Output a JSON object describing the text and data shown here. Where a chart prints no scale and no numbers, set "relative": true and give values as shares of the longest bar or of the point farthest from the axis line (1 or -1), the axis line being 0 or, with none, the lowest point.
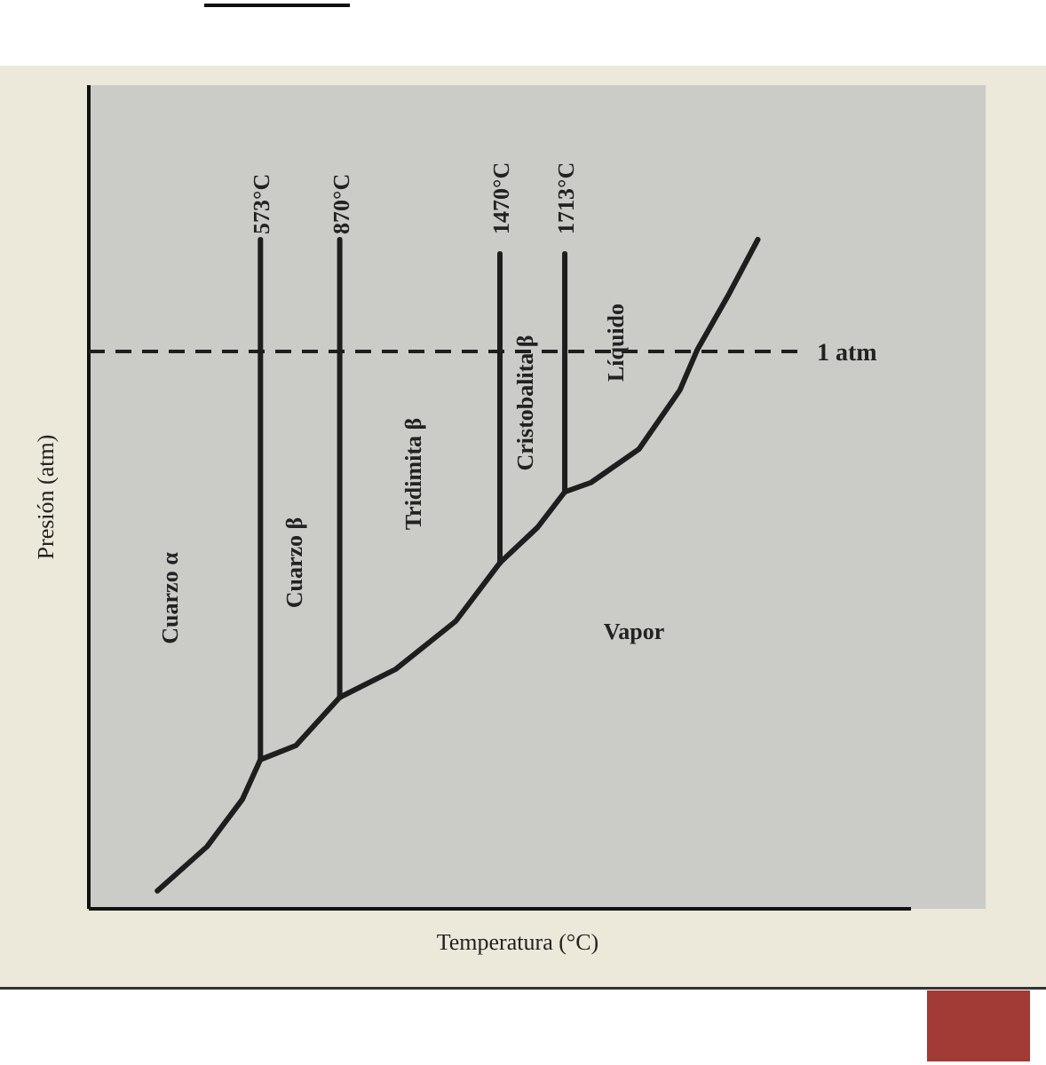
{
  "chart_data": {
    "type": "line",
    "relative": true,
    "xlabel": "Temperatura (°C)",
    "ylabel": "Presión (atm)",
    "xlim": [
      -70,
      3010
    ],
    "xticks": [
      {
        "value": 573,
        "label": "573°C"
      },
      {
        "value": 870,
        "label": "870°C"
      },
      {
        "value": 1470,
        "label": "1470°C"
      },
      {
        "value": 1713,
        "label": "1713°C"
      }
    ],
    "tick_labels": "x",
    "line_style": "solid",
    "marker": "none",
    "series": [
      {
        "color": "#1e1e1e",
        "x": [
          187,
          373,
          506,
          573,
          706,
          870,
          1079,
          1305,
          1470,
          1611,
          1713,
          1811,
          1991,
          2144,
          2210,
          2323,
          2436
        ],
        "values": [
          0.027,
          0.093,
          0.164,
          0.223,
          0.244,
          0.316,
          0.358,
          0.43,
          0.517,
          0.57,
          0.623,
          0.637,
          0.687,
          0.775,
          0.836,
          0.915,
          1
        ]
      }
    ],
    "ref_lines": [
      {
        "axis": "y",
        "value": 0.833,
        "label": "1 atm",
        "line_style": "dashed",
        "color": "#1e1e1e"
      },
      {
        "axis": "x",
        "value": 573,
        "color": "#1e1e1e"
      },
      {
        "axis": "x",
        "value": 870,
        "color": "#1e1e1e"
      },
      {
        "axis": "x",
        "value": 1470,
        "color": "#1e1e1e"
      },
      {
        "axis": "x",
        "value": 1713,
        "color": "#1e1e1e"
      }
    ],
    "annotations": [
      "Cuarzo α",
      "Cuarzo β",
      "Tridimita β",
      "Cristobalita β",
      "Líquido",
      "Vapor"
    ]
  }
}
